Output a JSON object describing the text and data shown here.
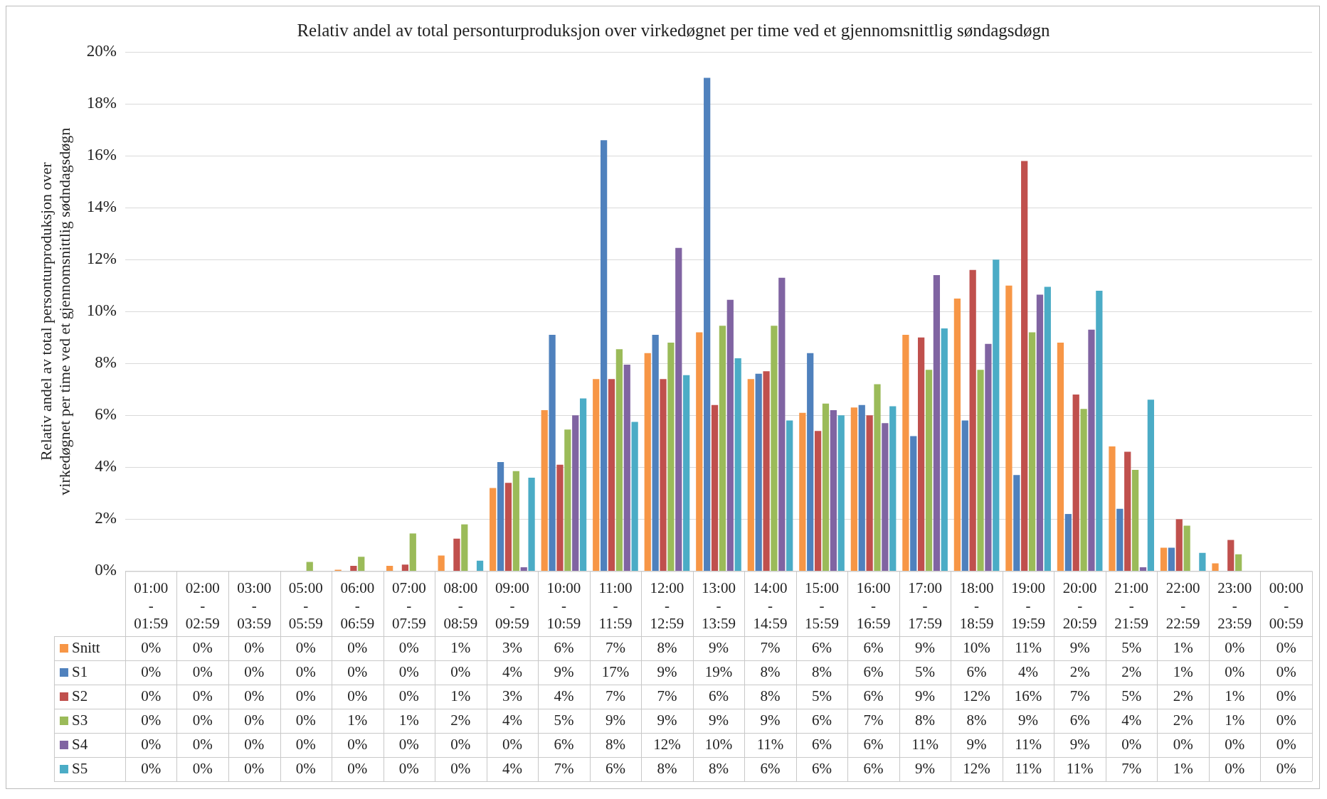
{
  "chart_data": {
    "type": "bar",
    "title": "Relativ andel av total personturproduksjon over virkedøgnet per time ved et gjennomsnittlig søndagsdøgn",
    "ylabel": "Relativ andel av total personturproduksjon over virkedøgnet per time ved et gjennomsnittlig sødndagsdøgn",
    "categories": [
      "01:00 - 01:59",
      "02:00 - 02:59",
      "03:00 - 03:59",
      "05:00 - 05:59",
      "06:00 - 06:59",
      "07:00 - 07:59",
      "08:00 - 08:59",
      "09:00 - 09:59",
      "10:00 - 10:59",
      "11:00 - 11:59",
      "12:00 - 12:59",
      "13:00 - 13:59",
      "14:00 - 14:59",
      "15:00 - 15:59",
      "16:00 - 16:59",
      "17:00 - 17:59",
      "18:00 - 18:59",
      "19:00 - 19:59",
      "20:00 - 20:59",
      "21:00 - 21:59",
      "22:00 - 22:59",
      "23:00 - 23:59",
      "00:00 - 00:59"
    ],
    "series": [
      {
        "name": "Snitt",
        "color": "#f79646",
        "values": [
          0,
          0,
          0,
          0,
          0.05,
          0.2,
          0.6,
          3.2,
          6.2,
          7.4,
          8.4,
          9.2,
          7.4,
          6.1,
          6.3,
          9.1,
          10.5,
          11.0,
          8.8,
          4.8,
          0.9,
          0.3,
          0
        ],
        "value_labels": [
          "0%",
          "0%",
          "0%",
          "0%",
          "0%",
          "0%",
          "1%",
          "3%",
          "6%",
          "7%",
          "8%",
          "9%",
          "7%",
          "6%",
          "6%",
          "9%",
          "10%",
          "11%",
          "9%",
          "5%",
          "1%",
          "0%",
          "0%"
        ]
      },
      {
        "name": "S1",
        "color": "#4f81bd",
        "values": [
          0,
          0,
          0,
          0,
          0,
          0,
          0,
          4.2,
          9.1,
          16.6,
          9.1,
          19.0,
          7.6,
          8.4,
          6.4,
          5.2,
          5.8,
          3.7,
          2.2,
          2.4,
          0.9,
          0,
          0
        ],
        "value_labels": [
          "0%",
          "0%",
          "0%",
          "0%",
          "0%",
          "0%",
          "0%",
          "4%",
          "9%",
          "17%",
          "9%",
          "19%",
          "8%",
          "8%",
          "6%",
          "5%",
          "6%",
          "4%",
          "2%",
          "2%",
          "1%",
          "0%",
          "0%"
        ]
      },
      {
        "name": "S2",
        "color": "#c0504d",
        "values": [
          0,
          0,
          0,
          0,
          0.2,
          0.25,
          1.25,
          3.4,
          4.1,
          7.4,
          7.4,
          6.4,
          7.7,
          5.4,
          6.0,
          9.0,
          11.6,
          15.8,
          6.8,
          4.6,
          2.0,
          1.2,
          0
        ],
        "value_labels": [
          "0%",
          "0%",
          "0%",
          "0%",
          "0%",
          "0%",
          "1%",
          "3%",
          "4%",
          "7%",
          "7%",
          "6%",
          "8%",
          "5%",
          "6%",
          "9%",
          "12%",
          "16%",
          "7%",
          "5%",
          "2%",
          "1%",
          "0%"
        ]
      },
      {
        "name": "S3",
        "color": "#9bbb59",
        "values": [
          0,
          0,
          0,
          0.35,
          0.55,
          1.45,
          1.8,
          3.85,
          5.45,
          8.55,
          8.8,
          9.45,
          9.45,
          6.45,
          7.2,
          7.75,
          7.75,
          9.2,
          6.25,
          3.9,
          1.75,
          0.65,
          0
        ],
        "value_labels": [
          "0%",
          "0%",
          "0%",
          "0%",
          "1%",
          "1%",
          "2%",
          "4%",
          "5%",
          "9%",
          "9%",
          "9%",
          "9%",
          "6%",
          "7%",
          "8%",
          "8%",
          "9%",
          "6%",
          "4%",
          "2%",
          "1%",
          "0%"
        ]
      },
      {
        "name": "S4",
        "color": "#8064a2",
        "values": [
          0,
          0,
          0,
          0,
          0,
          0,
          0,
          0.15,
          6.0,
          7.95,
          12.45,
          10.45,
          11.3,
          6.2,
          5.7,
          11.4,
          8.75,
          10.65,
          9.3,
          0.15,
          0,
          0,
          0
        ],
        "value_labels": [
          "0%",
          "0%",
          "0%",
          "0%",
          "0%",
          "0%",
          "0%",
          "0%",
          "6%",
          "8%",
          "12%",
          "10%",
          "11%",
          "6%",
          "6%",
          "11%",
          "9%",
          "11%",
          "9%",
          "0%",
          "0%",
          "0%",
          "0%"
        ]
      },
      {
        "name": "S5",
        "color": "#4bacc6",
        "values": [
          0,
          0,
          0,
          0,
          0,
          0,
          0.4,
          3.6,
          6.65,
          5.75,
          7.55,
          8.2,
          5.8,
          6.0,
          6.35,
          9.35,
          12.0,
          10.95,
          10.8,
          6.6,
          0.7,
          0,
          0
        ],
        "value_labels": [
          "0%",
          "0%",
          "0%",
          "0%",
          "0%",
          "0%",
          "0%",
          "4%",
          "7%",
          "6%",
          "8%",
          "8%",
          "6%",
          "6%",
          "6%",
          "9%",
          "12%",
          "11%",
          "11%",
          "7%",
          "1%",
          "0%",
          "0%"
        ]
      }
    ],
    "ylim": [
      0,
      20
    ],
    "yticks": [
      {
        "value": 0,
        "label": "0%"
      },
      {
        "value": 2,
        "label": "2%"
      },
      {
        "value": 4,
        "label": "4%"
      },
      {
        "value": 6,
        "label": "6%"
      },
      {
        "value": 8,
        "label": "8%"
      },
      {
        "value": 10,
        "label": "10%"
      },
      {
        "value": 12,
        "label": "12%"
      },
      {
        "value": 14,
        "label": "14%"
      },
      {
        "value": 16,
        "label": "16%"
      },
      {
        "value": 18,
        "label": "18%"
      },
      {
        "value": 20,
        "label": "20%"
      }
    ],
    "grid": "y",
    "legend": "bottom"
  }
}
